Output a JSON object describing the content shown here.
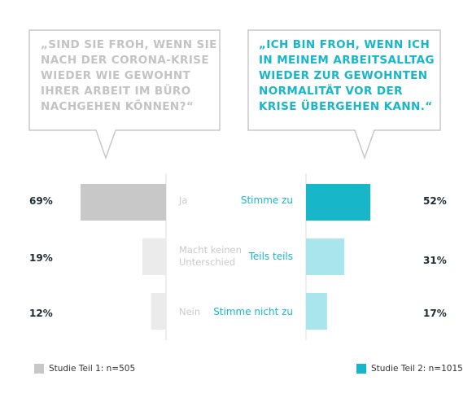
{
  "questions": {
    "left": [
      "„SIND SIE FROH, WENN SIE",
      "NACH DER CORONA-KRISE",
      "WIEDER WIE GEWOHNT",
      "IHRER ARBEIT IM BÜRO",
      "NACHGEHEN KÖNNEN?“"
    ],
    "right": [
      "„ICH BIN FROH, WENN ICH",
      "IN MEINEM ARBEITSALLTAG",
      "WIEDER ZUR GEWOHNTEN",
      "NORMALITÄT VOR DER",
      "KRISE ÜBERGEHEN KANN.“"
    ]
  },
  "colors": {
    "left_bar": "#c8c8c8",
    "left_bar_light": "#ebebeb",
    "right_bar": "#17b6c8",
    "right_bar_light": "#a9e5ed",
    "bubble_stroke": "#c8c8c8"
  },
  "chart_data": {
    "type": "bar",
    "left": {
      "name": "Studie Teil 1: n=505",
      "categories": [
        "Ja",
        "Macht keinen Unterschied",
        "Nein"
      ],
      "values": [
        69,
        19,
        12
      ],
      "labels": [
        "69%",
        "19%",
        "12%"
      ]
    },
    "right": {
      "name": "Studie Teil 2: n=1015",
      "categories": [
        "Stimme zu",
        "Teils teils",
        "Stimme nicht zu"
      ],
      "values": [
        52,
        31,
        17
      ],
      "labels": [
        "52%",
        "31%",
        "17%"
      ]
    }
  },
  "legend": {
    "left": "Studie Teil 1: n=505",
    "right": "Studie Teil 2: n=1015"
  }
}
